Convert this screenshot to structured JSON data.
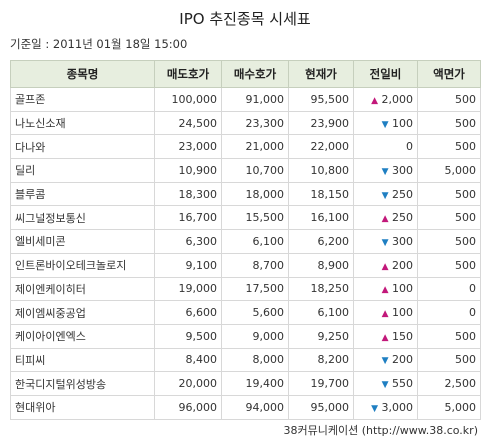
{
  "title": "IPO 추진종목 시세표",
  "basis": "기준일 : 2011년 01월 18일 15:00",
  "headers": [
    "종목명",
    "매도호가",
    "매수호가",
    "현재가",
    "전일비",
    "액면가"
  ],
  "rows": [
    {
      "name": "골프존",
      "ask": "100,000",
      "bid": "91,000",
      "price": "95,500",
      "dir": "up",
      "change": "2,000",
      "par": "500"
    },
    {
      "name": "나노신소재",
      "ask": "24,500",
      "bid": "23,300",
      "price": "23,900",
      "dir": "down",
      "change": "100",
      "par": "500"
    },
    {
      "name": "다나와",
      "ask": "23,000",
      "bid": "21,000",
      "price": "22,000",
      "dir": "none",
      "change": "0",
      "par": "500"
    },
    {
      "name": "딜리",
      "ask": "10,900",
      "bid": "10,700",
      "price": "10,800",
      "dir": "down",
      "change": "300",
      "par": "5,000"
    },
    {
      "name": "블루콤",
      "ask": "18,300",
      "bid": "18,000",
      "price": "18,150",
      "dir": "down",
      "change": "250",
      "par": "500"
    },
    {
      "name": "씨그널정보통신",
      "ask": "16,700",
      "bid": "15,500",
      "price": "16,100",
      "dir": "up",
      "change": "250",
      "par": "500"
    },
    {
      "name": "엘비세미콘",
      "ask": "6,300",
      "bid": "6,100",
      "price": "6,200",
      "dir": "down",
      "change": "300",
      "par": "500"
    },
    {
      "name": "인트론바이오테크놀로지",
      "ask": "9,100",
      "bid": "8,700",
      "price": "8,900",
      "dir": "up",
      "change": "200",
      "par": "500"
    },
    {
      "name": "제이엔케이히터",
      "ask": "19,000",
      "bid": "17,500",
      "price": "18,250",
      "dir": "up",
      "change": "100",
      "par": "0"
    },
    {
      "name": "제이엠씨중공업",
      "ask": "6,600",
      "bid": "5,600",
      "price": "6,100",
      "dir": "up",
      "change": "100",
      "par": "0"
    },
    {
      "name": "케이아이엔엑스",
      "ask": "9,500",
      "bid": "9,000",
      "price": "9,250",
      "dir": "up",
      "change": "150",
      "par": "500"
    },
    {
      "name": "티피씨",
      "ask": "8,400",
      "bid": "8,000",
      "price": "8,200",
      "dir": "down",
      "change": "200",
      "par": "500"
    },
    {
      "name": "한국디지털위성방송",
      "ask": "20,000",
      "bid": "19,400",
      "price": "19,700",
      "dir": "down",
      "change": "550",
      "par": "2,500"
    },
    {
      "name": "현대위아",
      "ask": "96,000",
      "bid": "94,000",
      "price": "95,000",
      "dir": "down",
      "change": "3,000",
      "par": "5,000"
    }
  ],
  "icons": {
    "up": "triangle-up-icon",
    "down": "triangle-down-icon"
  },
  "colors": {
    "up": "#c2187a",
    "down": "#1f7fc2",
    "header_bg": "#e7eedf"
  },
  "footer": "38커뮤니케이션 (http://www.38.co.kr)"
}
